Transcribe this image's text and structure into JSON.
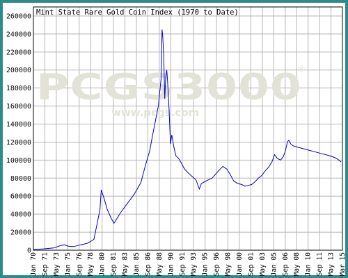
{
  "chart_data": {
    "type": "line",
    "title": "Mint State Rare Gold Coin Index (1970 to Date)",
    "xlabel": "",
    "ylabel": "",
    "x_tick_labels": [
      "Jan 70",
      "Sep 71",
      "May 73",
      "Jan 75",
      "Sep 76",
      "May 78",
      "Jan 80",
      "Sep 81",
      "May 83",
      "Jan 85",
      "Sep 86",
      "May 88",
      "Jan 90",
      "Sep 91",
      "May 93",
      "Jan 95",
      "Sep 96",
      "May 98",
      "Jan 00",
      "Sep 01",
      "May 03",
      "Jan 05",
      "Sep 06",
      "May 08",
      "Jan 10",
      "Sep 11",
      "May 13",
      "Mar 15"
    ],
    "y_ticks": [
      0,
      20000,
      40000,
      60000,
      80000,
      100000,
      120000,
      140000,
      160000,
      180000,
      200000,
      220000,
      240000,
      260000
    ],
    "ylim": [
      0,
      270000
    ],
    "xlim": [
      1970.0,
      2016.0
    ],
    "grid": true,
    "line_color": "#0000cc",
    "series": [
      {
        "values": [
          [
            1970.0,
            800
          ],
          [
            1971.5,
            1500
          ],
          [
            1973.0,
            2500
          ],
          [
            1974.0,
            5000
          ],
          [
            1974.6,
            6000
          ],
          [
            1975.2,
            4500
          ],
          [
            1976.0,
            4000
          ],
          [
            1977.0,
            6000
          ],
          [
            1978.0,
            7500
          ],
          [
            1979.0,
            12000
          ],
          [
            1979.5,
            30000
          ],
          [
            1979.9,
            45000
          ],
          [
            1980.1,
            67000
          ],
          [
            1980.5,
            58000
          ],
          [
            1981.0,
            45000
          ],
          [
            1981.6,
            35000
          ],
          [
            1982.0,
            30000
          ],
          [
            1982.5,
            36000
          ],
          [
            1983.0,
            42000
          ],
          [
            1984.0,
            52000
          ],
          [
            1985.0,
            62000
          ],
          [
            1986.0,
            75000
          ],
          [
            1986.6,
            92000
          ],
          [
            1987.3,
            110000
          ],
          [
            1987.8,
            130000
          ],
          [
            1988.2,
            145000
          ],
          [
            1988.6,
            160000
          ],
          [
            1989.0,
            190000
          ],
          [
            1989.15,
            245000
          ],
          [
            1989.25,
            238000
          ],
          [
            1989.4,
            215000
          ],
          [
            1989.55,
            168000
          ],
          [
            1989.7,
            192000
          ],
          [
            1989.85,
            200000
          ],
          [
            1990.0,
            185000
          ],
          [
            1990.2,
            155000
          ],
          [
            1990.4,
            118000
          ],
          [
            1990.6,
            128000
          ],
          [
            1990.9,
            115000
          ],
          [
            1991.2,
            105000
          ],
          [
            1991.6,
            102000
          ],
          [
            1992.0,
            97000
          ],
          [
            1992.5,
            90000
          ],
          [
            1993.0,
            86000
          ],
          [
            1993.6,
            82000
          ],
          [
            1994.2,
            78000
          ],
          [
            1994.7,
            68000
          ],
          [
            1995.0,
            74000
          ],
          [
            1995.5,
            76000
          ],
          [
            1996.0,
            78000
          ],
          [
            1996.6,
            80000
          ],
          [
            1997.2,
            85000
          ],
          [
            1997.8,
            90000
          ],
          [
            1998.2,
            93000
          ],
          [
            1998.8,
            90000
          ],
          [
            1999.3,
            84000
          ],
          [
            1999.8,
            77000
          ],
          [
            2000.4,
            74000
          ],
          [
            2001.0,
            73000
          ],
          [
            2001.5,
            71000
          ],
          [
            2002.0,
            72000
          ],
          [
            2002.5,
            73000
          ],
          [
            2003.0,
            76000
          ],
          [
            2003.5,
            80000
          ],
          [
            2004.0,
            83000
          ],
          [
            2004.5,
            88000
          ],
          [
            2005.0,
            92000
          ],
          [
            2005.5,
            98000
          ],
          [
            2005.9,
            106000
          ],
          [
            2006.3,
            102000
          ],
          [
            2006.8,
            100000
          ],
          [
            2007.2,
            104000
          ],
          [
            2007.5,
            110000
          ],
          [
            2007.8,
            120000
          ],
          [
            2008.0,
            122000
          ],
          [
            2008.3,
            118000
          ],
          [
            2008.6,
            116000
          ],
          [
            2009.0,
            115000
          ],
          [
            2010.0,
            113000
          ],
          [
            2011.0,
            111000
          ],
          [
            2012.0,
            109000
          ],
          [
            2013.0,
            107000
          ],
          [
            2014.0,
            105000
          ],
          [
            2014.8,
            103000
          ],
          [
            2015.3,
            101000
          ],
          [
            2015.8,
            98000
          ]
        ]
      }
    ]
  },
  "watermark": {
    "main": "PCGS3000",
    "sub": "www.pcgs.com",
    "reg": "®"
  }
}
